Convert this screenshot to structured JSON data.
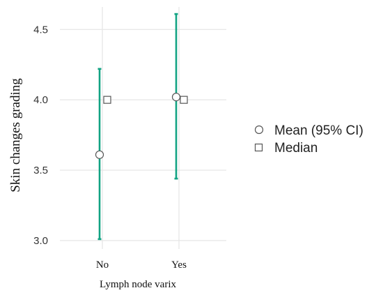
{
  "chart_data": {
    "type": "scatter",
    "xlabel": "Lymph node varix",
    "ylabel": "Skin changes grading",
    "categories": [
      "No",
      "Yes"
    ],
    "ylim": [
      2.94,
      4.66
    ],
    "yticks": [
      3.0,
      3.5,
      4.0,
      4.5
    ],
    "ytick_labels": [
      "3.0",
      "3.5",
      "4.0",
      "4.5"
    ],
    "grid": true,
    "legend_position": "right",
    "series": [
      {
        "name": "Mean (95% CI)",
        "marker": "circle",
        "values": [
          3.61,
          4.02
        ],
        "ci_lower": [
          3.01,
          3.44
        ],
        "ci_upper": [
          4.22,
          4.61
        ]
      },
      {
        "name": "Median",
        "marker": "square",
        "values": [
          4.0,
          4.0
        ]
      }
    ],
    "colors": {
      "errorbar": "#12a383",
      "marker_stroke": "#555555",
      "grid": "#e6e6e6"
    }
  }
}
